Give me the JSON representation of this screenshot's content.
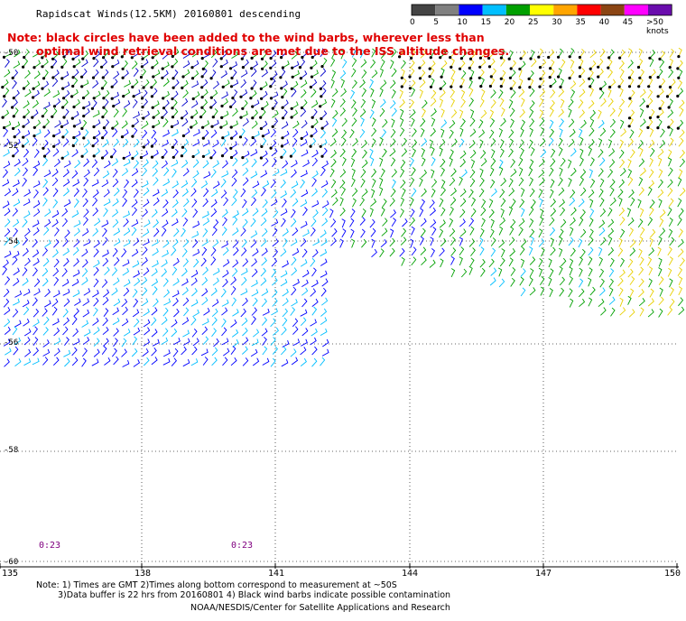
{
  "title": "Rapidscat Winds(12.5KM) 20160801 descending",
  "note_line1": "Note: black circles have been added to the wind barbs, wherever less than",
  "note_line2": "optimal wind retrieval conditions are met due to the ISS altitude changes.",
  "legend": {
    "labels": [
      "0",
      "5",
      "10",
      "15",
      "20",
      "25",
      "30",
      "35",
      "40",
      "45",
      ">50 knots"
    ],
    "colors": [
      "#444444",
      "#808080",
      "#0000ff",
      "#00bfff",
      "#00a000",
      "#ffff00",
      "#ffa500",
      "#ff0000",
      "#8b4513",
      "#ff00ff",
      "#6a0dad"
    ]
  },
  "lat_labels": [
    "-50",
    "-52",
    "-54",
    "-56",
    "-58",
    "-60"
  ],
  "lon_labels": [
    "135",
    "138",
    "141",
    "144",
    "147",
    "150"
  ],
  "time_labels": [
    "0:23",
    "0:23"
  ],
  "footer_line1": "Note: 1) Times are GMT 2)Times along bottom correspond to measurement at ~50S",
  "footer_line2": "3)Data buffer is 22 hrs from 20160801 4) Black wind barbs indicate possible contamination",
  "footer_line3": "NOAA/NESDIS/Center for Satellite Applications and Research"
}
